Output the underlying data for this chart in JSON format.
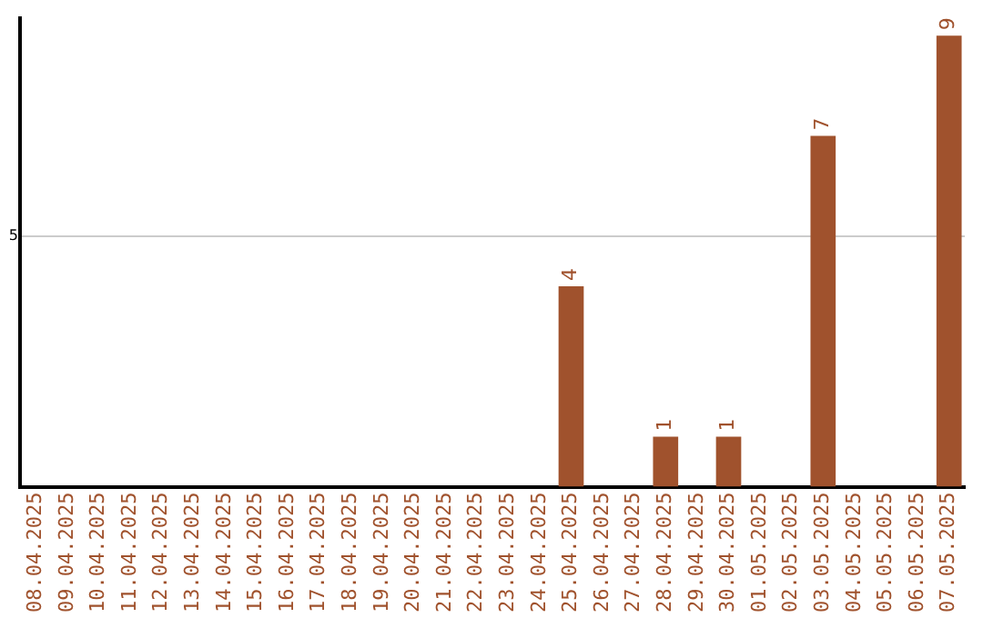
{
  "chart_data": {
    "type": "bar",
    "categories": [
      "08.04.2025",
      "09.04.2025",
      "10.04.2025",
      "11.04.2025",
      "12.04.2025",
      "13.04.2025",
      "14.04.2025",
      "15.04.2025",
      "16.04.2025",
      "17.04.2025",
      "18.04.2025",
      "19.04.2025",
      "20.04.2025",
      "21.04.2025",
      "22.04.2025",
      "23.04.2025",
      "24.04.2025",
      "25.04.2025",
      "26.04.2025",
      "27.04.2025",
      "28.04.2025",
      "29.04.2025",
      "30.04.2025",
      "01.05.2025",
      "02.05.2025",
      "03.05.2025",
      "04.05.2025",
      "05.05.2025",
      "06.05.2025",
      "07.05.2025"
    ],
    "values": [
      null,
      null,
      null,
      null,
      null,
      null,
      null,
      null,
      null,
      null,
      null,
      null,
      null,
      null,
      null,
      null,
      null,
      4,
      null,
      null,
      1,
      null,
      1,
      null,
      null,
      7,
      null,
      null,
      null,
      9
    ],
    "data_labels": true,
    "color": "#a0522d",
    "ylim": [
      0,
      9.35
    ],
    "yticks": [
      5
    ],
    "grid": "y",
    "legend": false
  }
}
